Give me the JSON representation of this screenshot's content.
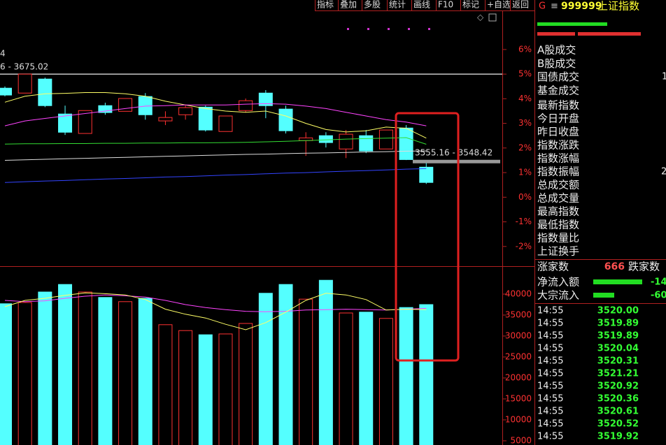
{
  "toolbar": [
    "指标",
    "叠加",
    "多股",
    "统计",
    "画线",
    "F10",
    "标记",
    "+自选",
    "返回"
  ],
  "price_chart": {
    "type": "candlestick",
    "ylim": [
      -2.8,
      7.5
    ],
    "yticks": [
      {
        "value": 6,
        "label": "6%"
      },
      {
        "value": 5,
        "label": "5%"
      },
      {
        "value": 4,
        "label": "4%"
      },
      {
        "value": 3,
        "label": "3%"
      },
      {
        "value": 2,
        "label": "2%"
      },
      {
        "value": 1,
        "label": "1%"
      },
      {
        "value": 0,
        "label": "0%"
      },
      {
        "value": -1,
        "label": "-1%"
      },
      {
        "value": -2,
        "label": "-2%"
      }
    ],
    "up_color": "#ff3232",
    "down_color": "#54ffff",
    "open": [
      4.43,
      4.23,
      4.8,
      3.38,
      2.59,
      3.72,
      3.49,
      4.09,
      3.1,
      3.35,
      3.66,
      2.67,
      3.52,
      4.23,
      3.58,
      2.3,
      2.5,
      1.96,
      2.5,
      1.96,
      2.81,
      1.22
    ],
    "close": [
      4.15,
      5.0,
      3.72,
      2.64,
      3.52,
      3.44,
      4.01,
      3.35,
      3.24,
      3.64,
      2.73,
      3.3,
      3.92,
      3.72,
      2.7,
      2.41,
      2.22,
      2.56,
      1.88,
      2.73,
      1.53,
      0.6
    ],
    "high": [
      4.5,
      5.0,
      4.86,
      3.72,
      3.52,
      3.84,
      4.01,
      4.23,
      3.49,
      3.72,
      3.72,
      3.3,
      4.01,
      4.35,
      3.72,
      2.64,
      2.64,
      2.73,
      2.73,
      2.73,
      2.93,
      1.39
    ],
    "low": [
      4.1,
      4.23,
      3.66,
      2.53,
      2.59,
      3.35,
      3.49,
      3.15,
      2.93,
      3.15,
      2.67,
      2.67,
      3.44,
      3.21,
      2.59,
      1.68,
      2.02,
      1.59,
      1.79,
      1.96,
      1.51,
      0.54
    ],
    "ma_lines": [
      {
        "color": "#ffff66",
        "values": [
          3.86,
          4.1,
          4.2,
          4.22,
          4.25,
          4.25,
          4.2,
          4.1,
          3.9,
          3.75,
          3.6,
          3.5,
          3.45,
          3.5,
          3.3,
          3.0,
          2.75,
          2.65,
          2.7,
          2.85,
          2.8,
          2.4
        ]
      },
      {
        "color": "#ff44ff",
        "values": [
          2.9,
          3.1,
          3.2,
          3.3,
          3.4,
          3.5,
          3.6,
          3.7,
          3.72,
          3.75,
          3.75,
          3.75,
          3.78,
          3.8,
          3.78,
          3.7,
          3.6,
          3.45,
          3.3,
          3.15,
          3.05,
          2.9
        ]
      },
      {
        "color": "#33dd33",
        "values": [
          2.16,
          2.17,
          2.17,
          2.18,
          2.18,
          2.19,
          2.19,
          2.2,
          2.2,
          2.21,
          2.21,
          2.22,
          2.23,
          2.25,
          2.27,
          2.3,
          2.33,
          2.36,
          2.38,
          2.4,
          2.42,
          2.15
        ]
      },
      {
        "color": "#dddddd",
        "values": [
          1.5,
          1.52,
          1.54,
          1.56,
          1.58,
          1.6,
          1.62,
          1.64,
          1.66,
          1.68,
          1.7,
          1.72,
          1.74,
          1.75,
          1.77,
          1.79,
          1.8,
          1.82,
          1.84,
          1.85,
          1.87,
          1.88
        ]
      },
      {
        "color": "#3344ff",
        "values": [
          0.6,
          0.63,
          0.66,
          0.68,
          0.71,
          0.74,
          0.76,
          0.79,
          0.82,
          0.84,
          0.87,
          0.9,
          0.92,
          0.95,
          0.98,
          1.0,
          1.03,
          1.06,
          1.08,
          1.11,
          1.14,
          1.16
        ]
      }
    ],
    "ref_levels": [
      5,
      1.45
    ],
    "labels": [
      "4",
      "6 - 3675.02",
      "3555.16 - 3548.42"
    ]
  },
  "volume_chart": {
    "type": "bar",
    "ylim": [
      0,
      46000
    ],
    "yticks": [
      40000,
      35000,
      30000,
      25000,
      20000,
      15000,
      10000,
      5000
    ],
    "values": [
      37700,
      38000,
      40500,
      42300,
      40500,
      39200,
      38200,
      39000,
      32700,
      31300,
      30300,
      30500,
      33000,
      40200,
      42300,
      38800,
      43300,
      35500,
      35700,
      34200,
      36800,
      37500
    ],
    "ma_lines": [
      {
        "color": "#ff44ff",
        "values": [
          38500,
          38200,
          38400,
          39000,
          39500,
          39800,
          39600,
          39300,
          38500,
          37500,
          36800,
          36300,
          35900,
          35800,
          35900,
          36200,
          36300,
          36400,
          36300,
          36200,
          36400,
          36600
        ]
      },
      {
        "color": "#ffff66",
        "values": [
          37000,
          38500,
          39000,
          39700,
          40300,
          40100,
          39800,
          38700,
          36400,
          35200,
          34300,
          32800,
          31500,
          33200,
          35700,
          38500,
          40200,
          39800,
          38700,
          36200,
          36400,
          36300
        ]
      }
    ]
  },
  "panel": {
    "code_prefix": "G",
    "menu_icon": "≡",
    "code": "999999",
    "name": "上证指数",
    "group1": [
      "A股成交",
      "B股成交",
      "国债成交",
      "基金成交"
    ],
    "group1_value": "1",
    "group2": [
      "最新指数",
      "今日开盘",
      "昨日收盘",
      "指数涨跌",
      "指数涨幅",
      "指数振幅",
      "总成交额",
      "总成交量",
      "最高指数",
      "最低指数",
      "指数量比",
      "上证换手"
    ],
    "group2_value": "2",
    "up_label": "涨家数",
    "up_count": "666",
    "down_label": "跌家数",
    "flows": [
      {
        "label": "净流入额",
        "value": "-14"
      },
      {
        "label": "大宗流入",
        "value": "-60"
      }
    ],
    "ticks": [
      [
        "14:55",
        "3520.00"
      ],
      [
        "14:55",
        "3519.89"
      ],
      [
        "14:55",
        "3519.89"
      ],
      [
        "14:55",
        "3520.04"
      ],
      [
        "14:55",
        "3520.31"
      ],
      [
        "14:55",
        "3521.21"
      ],
      [
        "14:55",
        "3520.92"
      ],
      [
        "14:55",
        "3520.36"
      ],
      [
        "14:55",
        "3520.61"
      ],
      [
        "14:55",
        "3520.52"
      ],
      [
        "14:55",
        "3519.92"
      ]
    ]
  }
}
